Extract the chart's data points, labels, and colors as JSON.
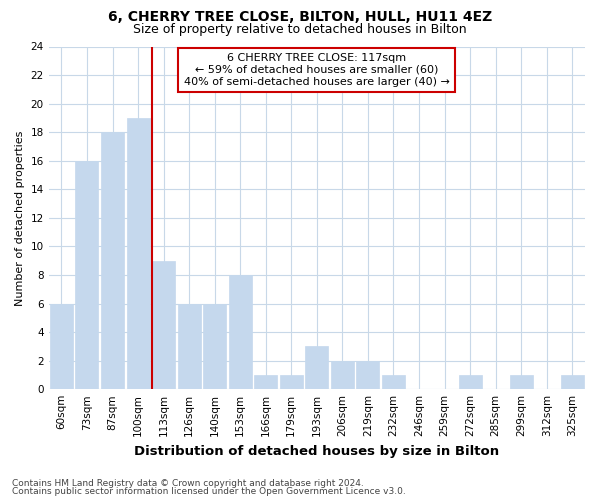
{
  "title1": "6, CHERRY TREE CLOSE, BILTON, HULL, HU11 4EZ",
  "title2": "Size of property relative to detached houses in Bilton",
  "xlabel": "Distribution of detached houses by size in Bilton",
  "ylabel": "Number of detached properties",
  "categories": [
    "60sqm",
    "73sqm",
    "87sqm",
    "100sqm",
    "113sqm",
    "126sqm",
    "140sqm",
    "153sqm",
    "166sqm",
    "179sqm",
    "193sqm",
    "206sqm",
    "219sqm",
    "232sqm",
    "246sqm",
    "259sqm",
    "272sqm",
    "285sqm",
    "299sqm",
    "312sqm",
    "325sqm"
  ],
  "values": [
    6,
    16,
    18,
    19,
    9,
    6,
    6,
    8,
    1,
    1,
    3,
    2,
    2,
    1,
    0,
    0,
    1,
    0,
    1,
    0,
    1
  ],
  "bar_color": "#c5d8ed",
  "bar_edgecolor": "#c5d8ed",
  "vline_color": "#cc0000",
  "annotation_text": "6 CHERRY TREE CLOSE: 117sqm\n← 59% of detached houses are smaller (60)\n40% of semi-detached houses are larger (40) →",
  "annotation_box_facecolor": "#ffffff",
  "annotation_box_edgecolor": "#cc0000",
  "ylim": [
    0,
    24
  ],
  "yticks": [
    0,
    2,
    4,
    6,
    8,
    10,
    12,
    14,
    16,
    18,
    20,
    22,
    24
  ],
  "footer1": "Contains HM Land Registry data © Crown copyright and database right 2024.",
  "footer2": "Contains public sector information licensed under the Open Government Licence v3.0.",
  "bg_color": "#ffffff",
  "plot_bg_color": "#ffffff",
  "grid_color": "#c8d8e8",
  "title1_fontsize": 10,
  "title2_fontsize": 9,
  "xlabel_fontsize": 9.5,
  "ylabel_fontsize": 8,
  "tick_fontsize": 7.5,
  "annotation_fontsize": 8,
  "footer_fontsize": 6.5,
  "vline_bar_index": 4
}
